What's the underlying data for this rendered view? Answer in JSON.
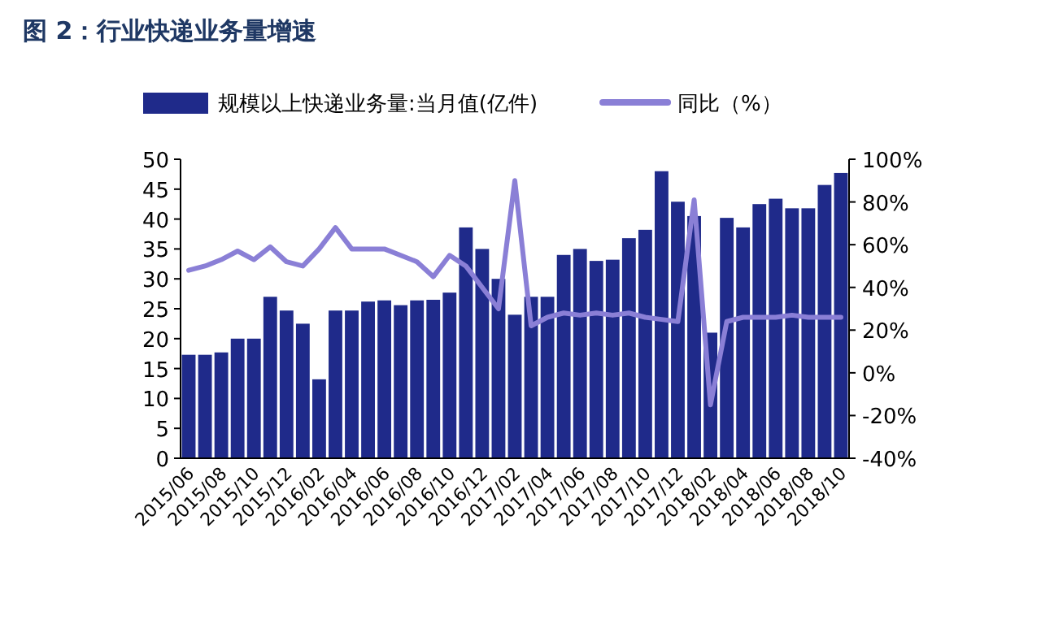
{
  "chart_data": {
    "type": "bar",
    "title": "图 2：行业快递业务量增速",
    "categories": [
      "2015/06",
      null,
      "2015/08",
      null,
      "2015/10",
      null,
      "2015/12",
      null,
      "2016/02",
      null,
      "2016/04",
      null,
      "2016/06",
      null,
      "2016/08",
      null,
      "2016/10",
      null,
      "2016/12",
      null,
      "2017/02",
      null,
      "2017/04",
      null,
      "2017/06",
      null,
      "2017/08",
      null,
      "2017/10",
      null,
      "2017/12",
      null,
      "2018/02",
      null,
      "2018/04",
      null,
      "2018/06",
      null,
      "2018/08",
      null,
      "2018/10"
    ],
    "series": [
      {
        "name": "规模以上快递业务量:当月值(亿件)",
        "color": "#1f2a8a",
        "values": [
          17.3,
          17.3,
          17.7,
          20,
          20,
          27,
          24.7,
          22.5,
          13.2,
          24.7,
          24.7,
          26.2,
          26.4,
          25.6,
          26.4,
          26.5,
          27.7,
          38.6,
          35,
          30,
          24,
          27,
          27,
          34,
          35,
          33,
          33.2,
          36.8,
          38.2,
          48,
          42.9,
          40.5,
          21,
          40.2,
          38.6,
          42.5,
          43.4,
          41.8,
          41.8,
          45.7,
          47.7
        ]
      },
      {
        "name": "同比（%）",
        "type": "line",
        "axis": "y2",
        "color": "#8a7fd6",
        "values": [
          48,
          50,
          53,
          57,
          53,
          59,
          52,
          50,
          58,
          68,
          58,
          58,
          58,
          55,
          52,
          45,
          55,
          50,
          40,
          30,
          90,
          22,
          26,
          28,
          27,
          28,
          27,
          28,
          26,
          25,
          24,
          81,
          -15,
          24,
          26,
          26,
          26,
          27,
          26,
          26,
          26
        ]
      }
    ],
    "ylim": [
      0,
      50
    ],
    "yticks": [
      0,
      5,
      10,
      15,
      20,
      25,
      30,
      35,
      40,
      45,
      50
    ],
    "y2lim": [
      -40,
      100
    ],
    "y2ticks": [
      {
        "value": -40,
        "label": "-40%"
      },
      {
        "value": -20,
        "label": "-20%"
      },
      {
        "value": 0,
        "label": "0%"
      },
      {
        "value": 20,
        "label": "20%"
      },
      {
        "value": 40,
        "label": "40%"
      },
      {
        "value": 60,
        "label": "60%"
      },
      {
        "value": 80,
        "label": "80%"
      },
      {
        "value": 100,
        "label": "100%"
      }
    ],
    "legend": "top"
  }
}
